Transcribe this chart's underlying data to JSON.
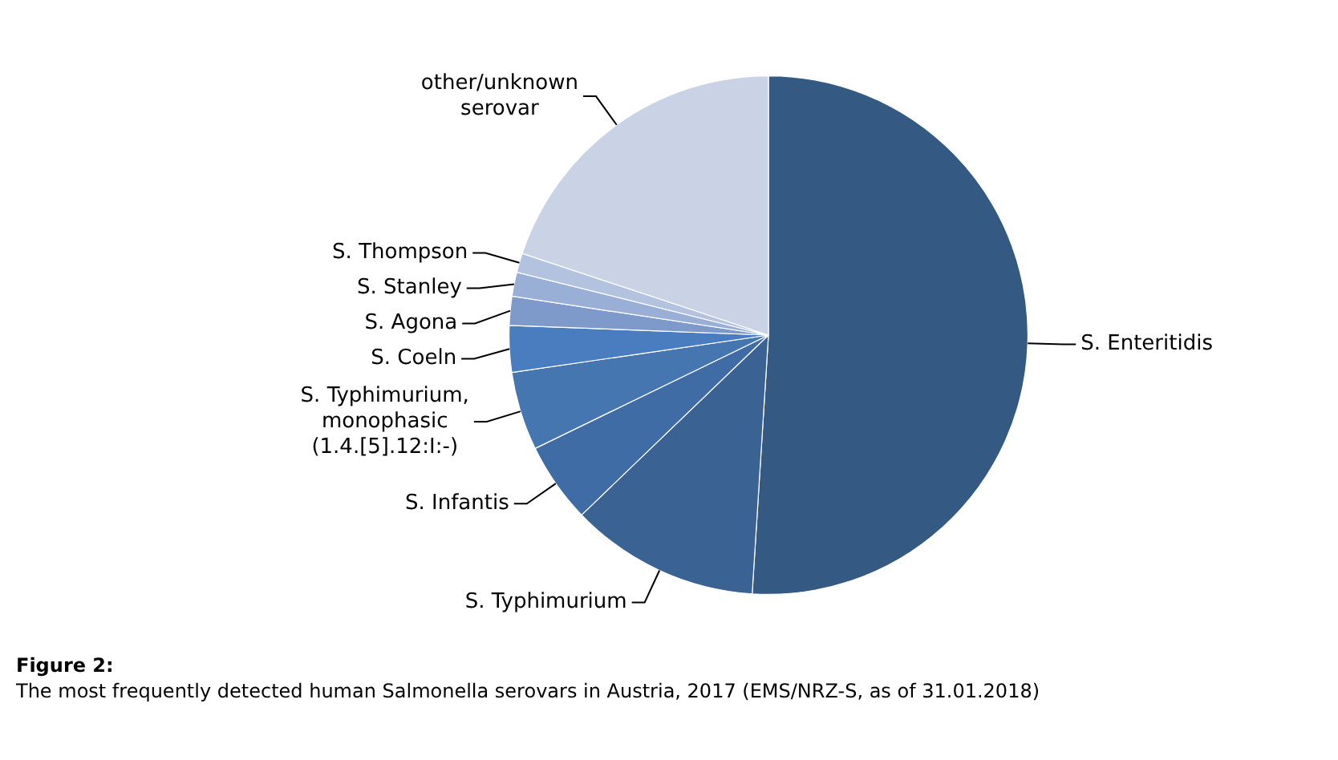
{
  "chart_data": {
    "type": "pie",
    "title": "Figure 2:",
    "subtitle": "The most frequently detected human Salmonella serovars in Austria, 2017 (EMS/NRZ-S, as of 31.01.2018)",
    "categories": [
      "S. Enteritidis",
      "S. Typhimurium",
      "S. Infantis",
      "S. Typhimurium,\nmonophasic\n(1.4.[5].12:I:-)",
      "S. Coeln",
      "S. Agona",
      "S. Stanley",
      "S. Thompson",
      "other/unknown\nserovar"
    ],
    "values": [
      51.0,
      11.8,
      5.0,
      4.9,
      2.9,
      1.8,
      1.5,
      1.2,
      19.9
    ],
    "colors": [
      "#345a83",
      "#3a6394",
      "#3f6ca4",
      "#4676af",
      "#4a7dbf",
      "#7d9acb",
      "#9aafd6",
      "#b3c2df",
      "#c9d3e5"
    ],
    "legend": false
  }
}
